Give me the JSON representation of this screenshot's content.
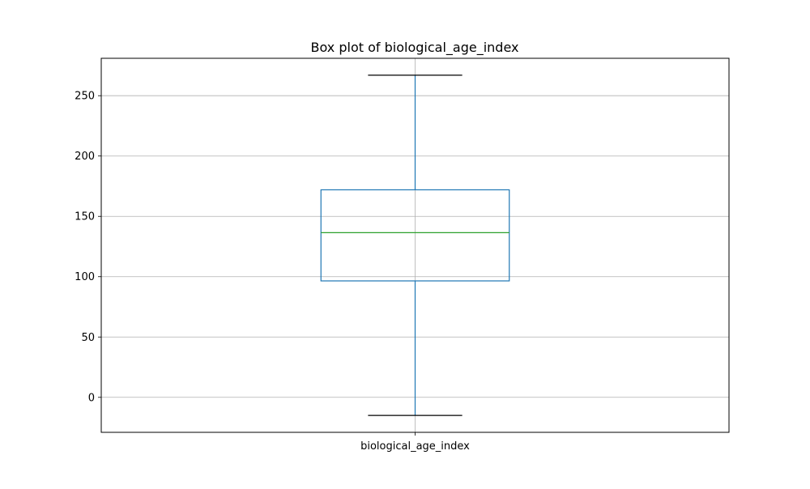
{
  "chart_data": {
    "type": "box",
    "title": "Box plot of biological_age_index",
    "categories": [
      "biological_age_index"
    ],
    "series": [
      {
        "whisker_low": -15,
        "q1": 96.5,
        "median": 136.5,
        "q3": 172,
        "whisker_high": 267
      }
    ],
    "xlabel": "",
    "ylabel": "",
    "ylim": [
      -29,
      281
    ],
    "yticks": [
      0,
      50,
      100,
      150,
      200,
      250
    ],
    "grid": true,
    "colors": {
      "box": "#1f77b4",
      "median": "#2ca02c",
      "caps": "#000000",
      "grid": "#b0b0b0",
      "axes": "#000000"
    }
  }
}
